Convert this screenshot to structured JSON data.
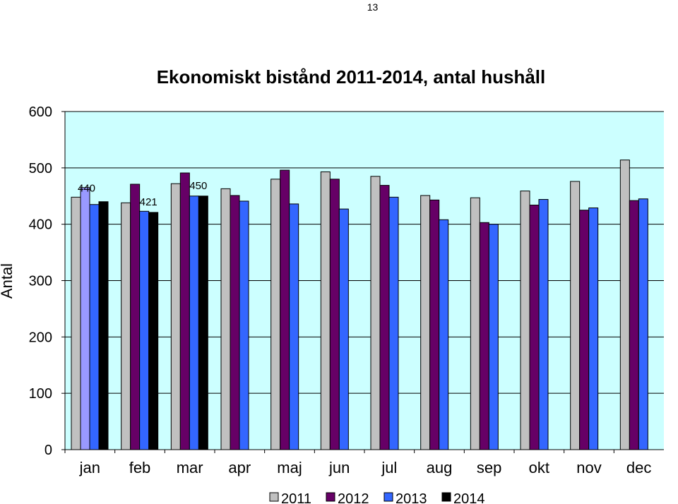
{
  "page_number": "13",
  "colors": {
    "plot_bg": "#ccffff",
    "2011": "#c0c0c0",
    "2012": "#660066",
    "2013": "#3366ff",
    "2014": "#000000",
    "jan_2012": "#9999ff"
  },
  "chart_data": {
    "type": "bar",
    "title": "Ekonomiskt bistånd 2011-2014, antal hushåll",
    "xlabel": "",
    "ylabel": "Antal",
    "ylim": [
      0,
      600
    ],
    "yticks": [
      "0",
      "100",
      "200",
      "300",
      "400",
      "500",
      "600"
    ],
    "grid": true,
    "legend_position": "bottom",
    "categories": [
      "jan",
      "feb",
      "mar",
      "apr",
      "maj",
      "jun",
      "jul",
      "aug",
      "sep",
      "okt",
      "nov",
      "dec"
    ],
    "series": [
      {
        "name": "2011",
        "values": [
          448,
          438,
          472,
          463,
          480,
          493,
          485,
          451,
          447,
          459,
          476,
          514
        ]
      },
      {
        "name": "2012",
        "values": [
          465,
          471,
          491,
          451,
          496,
          480,
          469,
          443,
          403,
          434,
          425,
          442
        ]
      },
      {
        "name": "2013",
        "values": [
          435,
          423,
          450,
          441,
          436,
          427,
          448,
          408,
          400,
          444,
          429,
          445
        ]
      },
      {
        "name": "2014",
        "values": [
          440,
          421,
          450,
          null,
          null,
          null,
          null,
          null,
          null,
          null,
          null,
          null
        ]
      }
    ],
    "data_labels": [
      {
        "category": "jan",
        "series": "2014",
        "text": "440"
      },
      {
        "category": "feb",
        "series": "2014",
        "text": "421"
      },
      {
        "category": "mar",
        "series": "2014",
        "text": "450"
      }
    ]
  }
}
